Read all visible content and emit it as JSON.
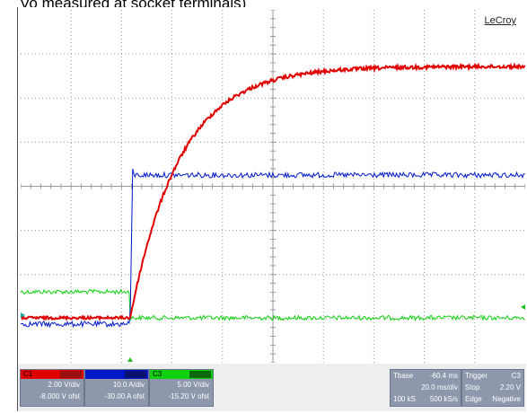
{
  "caption": "Vo measured at socket terminals)",
  "brand": "LeCroy",
  "colors": {
    "ch1": "#e00000",
    "ch2": "#0018c8",
    "ch3": "#10d010",
    "grid": "#9a9a9a"
  },
  "channels": [
    {
      "label": "C1",
      "tag": "",
      "volts_per_div": "2.00 V/div",
      "offset": "-8.000 V ofst"
    },
    {
      "label": "",
      "tag": "",
      "volts_per_div": "10.0 A/div",
      "offset": "-30.00 A ofst"
    },
    {
      "label": "C3",
      "tag": "",
      "volts_per_div": "5.00 V/div",
      "offset": "-15.20 V ofst"
    }
  ],
  "timebase": {
    "label": "Tbase",
    "delay": "-60.4 ms",
    "time_per_div": "20.0 ms/div",
    "samples": "100 kS",
    "rate": "500 kS/s"
  },
  "trigger": {
    "label": "Trigger",
    "source": "C3",
    "mode": "Stop",
    "level": "2.20 V",
    "type": "Edge",
    "slope": "Negative"
  }
}
